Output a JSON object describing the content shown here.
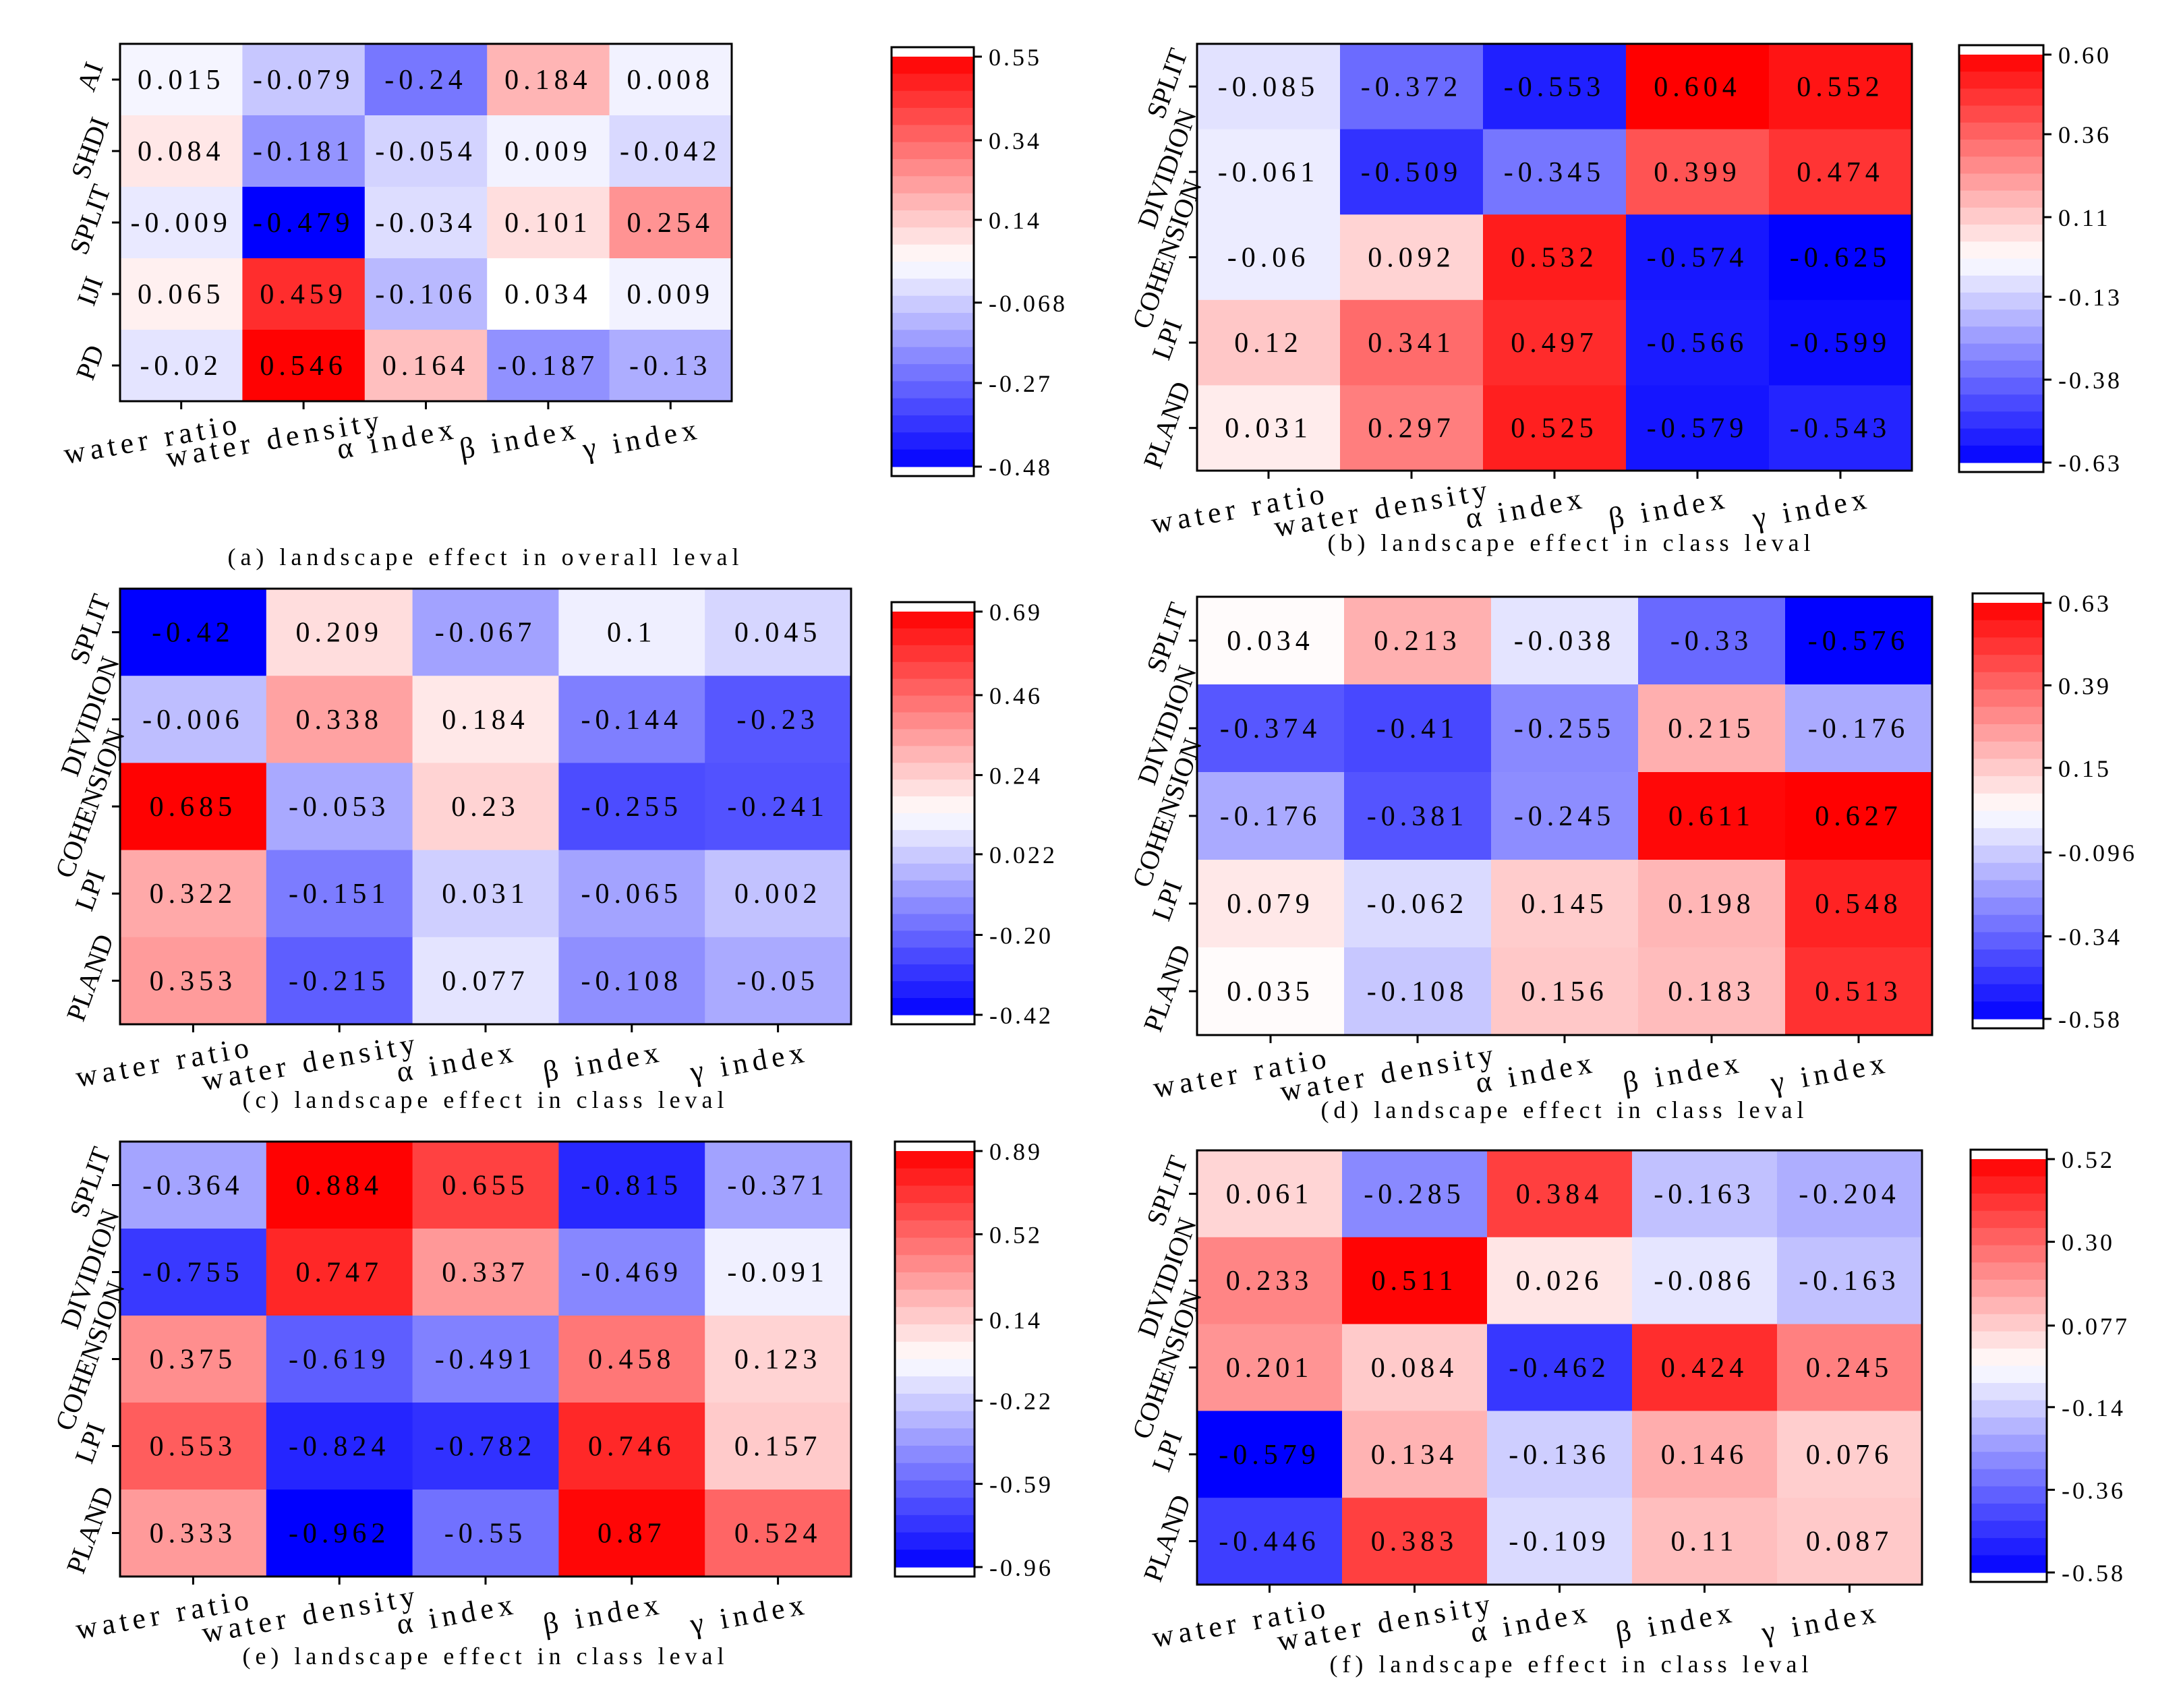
{
  "colors": {
    "low": "#0000ff",
    "mid": "#ffffff",
    "high": "#ff0000",
    "border": "#000000"
  },
  "chart_data": [
    {
      "type": "heatmap",
      "caption": "(a) landscape effect in overall leval",
      "x_labels": [
        "water ratio",
        "water density",
        "α index",
        "β index",
        "γ index"
      ],
      "y_labels": [
        "AI",
        "SHDI",
        "SPLIT",
        "IJI",
        "PD"
      ],
      "values": [
        [
          0.015,
          -0.079,
          -0.24,
          0.184,
          0.008
        ],
        [
          0.084,
          -0.181,
          -0.054,
          0.009,
          -0.042
        ],
        [
          -0.009,
          -0.479,
          -0.034,
          0.101,
          0.254
        ],
        [
          0.065,
          0.459,
          -0.106,
          0.034,
          0.009
        ],
        [
          -0.02,
          0.546,
          0.164,
          -0.187,
          -0.13
        ]
      ],
      "value_labels": [
        [
          "0.015",
          "-0.079",
          "-0.24",
          "0.184",
          "0.008"
        ],
        [
          "0.084",
          "-0.181",
          "-0.054",
          "0.009",
          "-0.042"
        ],
        [
          "-0.009",
          "-0.479",
          "-0.034",
          "0.101",
          "0.254"
        ],
        [
          "0.065",
          "0.459",
          "-0.106",
          "0.034",
          "0.009"
        ],
        [
          "-0.02",
          "0.546",
          "0.164",
          "-0.187",
          "-0.13"
        ]
      ],
      "colorbar": {
        "range": [
          -0.48,
          0.55
        ],
        "ticks": [
          0.55,
          0.34,
          0.14,
          -0.068,
          -0.27,
          -0.48
        ],
        "tick_labels": [
          "0.55",
          "0.34",
          "0.14",
          "-0.068",
          "-0.27",
          "-0.48"
        ]
      }
    },
    {
      "type": "heatmap",
      "caption": "(b) landscape effect in class leval",
      "x_labels": [
        "water ratio",
        "water density",
        "α index",
        "β index",
        "γ index"
      ],
      "y_labels": [
        "SPLIT",
        "DIVIDION",
        "COHENSION",
        "LPI",
        "PLAND"
      ],
      "values": [
        [
          -0.085,
          -0.372,
          -0.553,
          0.604,
          0.552
        ],
        [
          -0.061,
          -0.509,
          -0.345,
          0.399,
          0.474
        ],
        [
          -0.06,
          0.092,
          0.532,
          -0.574,
          -0.625
        ],
        [
          0.12,
          0.341,
          0.497,
          -0.566,
          -0.599
        ],
        [
          0.031,
          0.297,
          0.525,
          -0.579,
          -0.543
        ]
      ],
      "value_labels": [
        [
          "-0.085",
          "-0.372",
          "-0.553",
          "0.604",
          "0.552"
        ],
        [
          "-0.061",
          "-0.509",
          "-0.345",
          "0.399",
          "0.474"
        ],
        [
          "-0.06",
          "0.092",
          "0.532",
          "-0.574",
          "-0.625"
        ],
        [
          "0.12",
          "0.341",
          "0.497",
          "-0.566",
          "-0.599"
        ],
        [
          "0.031",
          "0.297",
          "0.525",
          "-0.579",
          "-0.543"
        ]
      ],
      "colorbar": {
        "range": [
          -0.63,
          0.6
        ],
        "ticks": [
          0.6,
          0.36,
          0.11,
          -0.13,
          -0.38,
          -0.63
        ],
        "tick_labels": [
          "0.60",
          "0.36",
          "0.11",
          "-0.13",
          "-0.38",
          "-0.63"
        ]
      }
    },
    {
      "type": "heatmap",
      "caption": "(c) landscape effect in class leval",
      "x_labels": [
        "water ratio",
        "water density",
        "α index",
        "β index",
        "γ index"
      ],
      "y_labels": [
        "SPLIT",
        "DIVIDION",
        "COHENSION",
        "LPI",
        "PLAND"
      ],
      "values": [
        [
          -0.42,
          0.209,
          -0.067,
          0.1,
          0.045
        ],
        [
          -0.006,
          0.338,
          0.184,
          -0.144,
          -0.23
        ],
        [
          0.685,
          -0.053,
          0.23,
          -0.255,
          -0.241
        ],
        [
          0.322,
          -0.151,
          0.031,
          -0.065,
          0.002
        ],
        [
          0.353,
          -0.215,
          0.077,
          -0.108,
          -0.05
        ]
      ],
      "value_labels": [
        [
          "-0.42",
          "0.209",
          "-0.067",
          "0.1",
          "0.045"
        ],
        [
          "-0.006",
          "0.338",
          "0.184",
          "-0.144",
          "-0.23"
        ],
        [
          "0.685",
          "-0.053",
          "0.23",
          "-0.255",
          "-0.241"
        ],
        [
          "0.322",
          "-0.151",
          "0.031",
          "-0.065",
          "0.002"
        ],
        [
          "0.353",
          "-0.215",
          "0.077",
          "-0.108",
          "-0.05"
        ]
      ],
      "colorbar": {
        "range": [
          -0.42,
          0.69
        ],
        "ticks": [
          0.69,
          0.46,
          0.24,
          0.022,
          -0.2,
          -0.42
        ],
        "tick_labels": [
          "0.69",
          "0.46",
          "0.24",
          "0.022",
          "-0.20",
          "-0.42"
        ]
      }
    },
    {
      "type": "heatmap",
      "caption": "(d) landscape effect in class leval",
      "x_labels": [
        "water ratio",
        "water density",
        "α index",
        "β index",
        "γ index"
      ],
      "y_labels": [
        "SPLIT",
        "DIVIDION",
        "COHENSION",
        "LPI",
        "PLAND"
      ],
      "values": [
        [
          0.034,
          0.213,
          -0.038,
          -0.33,
          -0.576
        ],
        [
          -0.374,
          -0.41,
          -0.255,
          0.215,
          -0.176
        ],
        [
          -0.176,
          -0.381,
          -0.245,
          0.611,
          0.627
        ],
        [
          0.079,
          -0.062,
          0.145,
          0.198,
          0.548
        ],
        [
          0.035,
          -0.108,
          0.156,
          0.183,
          0.513
        ]
      ],
      "value_labels": [
        [
          "0.034",
          "0.213",
          "-0.038",
          "-0.33",
          "-0.576"
        ],
        [
          "-0.374",
          "-0.41",
          "-0.255",
          "0.215",
          "-0.176"
        ],
        [
          "-0.176",
          "-0.381",
          "-0.245",
          "0.611",
          "0.627"
        ],
        [
          "0.079",
          "-0.062",
          "0.145",
          "0.198",
          "0.548"
        ],
        [
          "0.035",
          "-0.108",
          "0.156",
          "0.183",
          "0.513"
        ]
      ],
      "colorbar": {
        "range": [
          -0.58,
          0.63
        ],
        "ticks": [
          0.63,
          0.39,
          0.15,
          -0.096,
          -0.34,
          -0.58
        ],
        "tick_labels": [
          "0.63",
          "0.39",
          "0.15",
          "-0.096",
          "-0.34",
          "-0.58"
        ]
      }
    },
    {
      "type": "heatmap",
      "caption": "(e) landscape effect in class leval",
      "x_labels": [
        "water ratio",
        "water density",
        "α index",
        "β index",
        "γ index"
      ],
      "y_labels": [
        "SPLIT",
        "DIVIDION",
        "COHENSION",
        "LPI",
        "PLAND"
      ],
      "values": [
        [
          -0.364,
          0.884,
          0.655,
          -0.815,
          -0.371
        ],
        [
          -0.755,
          0.747,
          0.337,
          -0.469,
          -0.091
        ],
        [
          0.375,
          -0.619,
          -0.491,
          0.458,
          0.123
        ],
        [
          0.553,
          -0.824,
          -0.782,
          0.746,
          0.157
        ],
        [
          0.333,
          -0.962,
          -0.55,
          0.87,
          0.524
        ]
      ],
      "value_labels": [
        [
          "-0.364",
          "0.884",
          "0.655",
          "-0.815",
          "-0.371"
        ],
        [
          "-0.755",
          "0.747",
          "0.337",
          "-0.469",
          "-0.091"
        ],
        [
          "0.375",
          "-0.619",
          "-0.491",
          "0.458",
          "0.123"
        ],
        [
          "0.553",
          "-0.824",
          "-0.782",
          "0.746",
          "0.157"
        ],
        [
          "0.333",
          "-0.962",
          "-0.55",
          "0.87",
          "0.524"
        ]
      ],
      "colorbar": {
        "range": [
          -0.96,
          0.89
        ],
        "ticks": [
          0.89,
          0.52,
          0.14,
          -0.22,
          -0.59,
          -0.96
        ],
        "tick_labels": [
          "0.89",
          "0.52",
          "0.14",
          "-0.22",
          "-0.59",
          "-0.96"
        ]
      }
    },
    {
      "type": "heatmap",
      "caption": "(f) landscape effect in class leval",
      "x_labels": [
        "water ratio",
        "water density",
        "α index",
        "β index",
        "γ index"
      ],
      "y_labels": [
        "SPLIT",
        "DIVIDION",
        "COHENSION",
        "LPI",
        "PLAND"
      ],
      "values": [
        [
          0.061,
          -0.285,
          0.384,
          -0.163,
          -0.204
        ],
        [
          0.233,
          0.511,
          0.026,
          -0.086,
          -0.163
        ],
        [
          0.201,
          0.084,
          -0.462,
          0.424,
          0.245
        ],
        [
          -0.579,
          0.134,
          -0.136,
          0.146,
          0.076
        ],
        [
          -0.446,
          0.383,
          -0.109,
          0.11,
          0.087
        ]
      ],
      "value_labels": [
        [
          "0.061",
          "-0.285",
          "0.384",
          "-0.163",
          "-0.204"
        ],
        [
          "0.233",
          "0.511",
          "0.026",
          "-0.086",
          "-0.163"
        ],
        [
          "0.201",
          "0.084",
          "-0.462",
          "0.424",
          "0.245"
        ],
        [
          "-0.579",
          "0.134",
          "-0.136",
          "0.146",
          "0.076"
        ],
        [
          "-0.446",
          "0.383",
          "-0.109",
          "0.11",
          "0.087"
        ]
      ],
      "colorbar": {
        "range": [
          -0.58,
          0.52
        ],
        "ticks": [
          0.52,
          0.3,
          0.077,
          -0.14,
          -0.36,
          -0.58
        ],
        "tick_labels": [
          "0.52",
          "0.30",
          "0.077",
          "-0.14",
          "-0.36",
          "-0.58"
        ]
      }
    }
  ]
}
